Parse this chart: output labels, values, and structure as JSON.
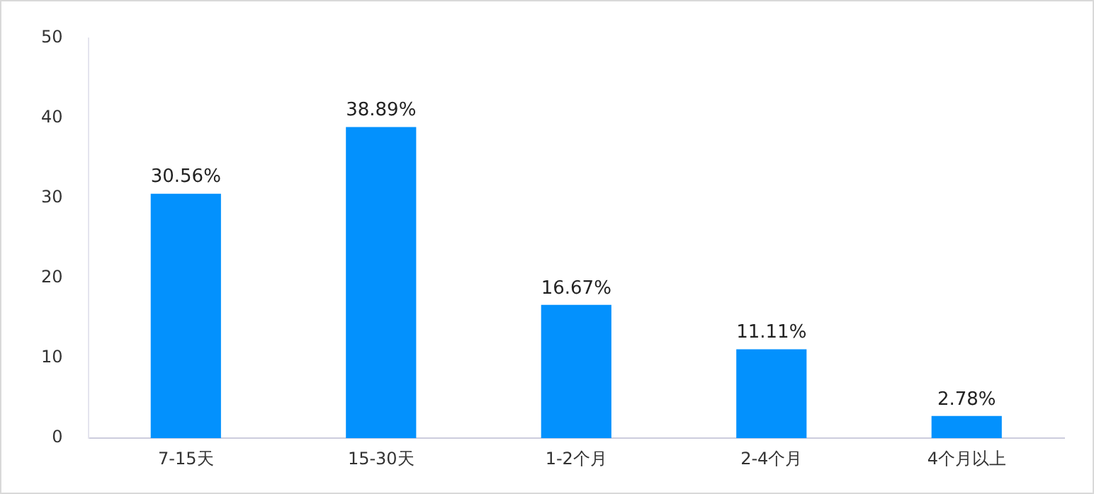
{
  "chart_data": {
    "type": "bar",
    "categories": [
      "7-15天",
      "15-30天",
      "1-2个月",
      "2-4个月",
      "4个月以上"
    ],
    "values": [
      30.56,
      38.89,
      16.67,
      11.11,
      2.78
    ],
    "value_labels": [
      "30.56%",
      "38.89%",
      "16.67%",
      "11.11%",
      "2.78%"
    ],
    "color": "#0391fd",
    "ylim": [
      0,
      50
    ],
    "yticks": [
      0,
      10,
      20,
      30,
      40,
      50
    ],
    "grid": false,
    "legend": false
  }
}
